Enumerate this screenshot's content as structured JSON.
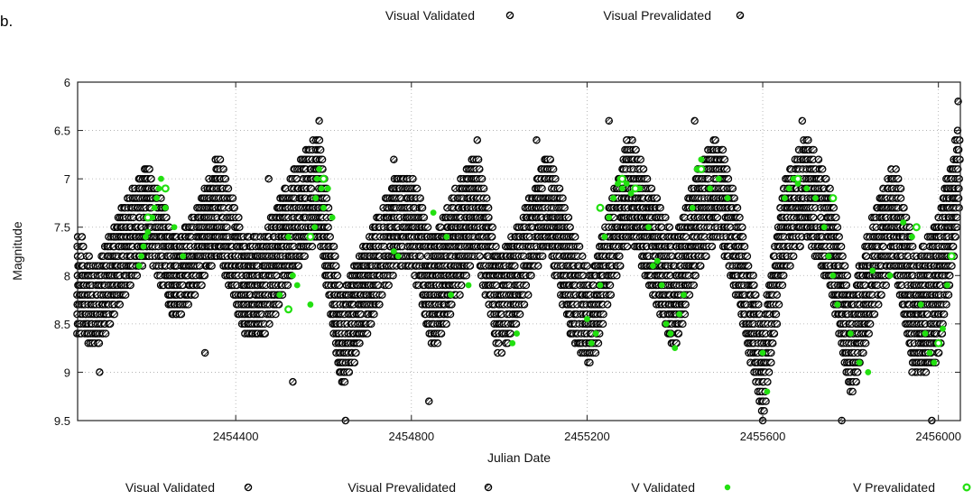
{
  "figure_label": "b.",
  "chart_data": {
    "type": "scatter",
    "xlabel": "Julian Date",
    "ylabel": "Magnitude",
    "xlim": [
      2454040,
      2456050
    ],
    "ylim": [
      6,
      9.5
    ],
    "y_inverted": true,
    "grid": true,
    "x_ticks": [
      2454400,
      2454800,
      2455200,
      2455600,
      2456000
    ],
    "y_ticks": [
      6,
      6.5,
      7,
      7.5,
      8,
      8.5,
      9,
      9.5
    ],
    "legend_top": [
      "Visual Validated",
      "Visual Prevalidated"
    ],
    "legend_bottom": [
      "Visual Validated",
      "Visual Prevalidated",
      "V Validated",
      "V Prevalidated"
    ],
    "series": [
      {
        "name": "Visual Validated",
        "color": "#000000",
        "marker": "open-circle-hatched",
        "envelope": {
          "x": [
            2454040,
            2454080,
            2454140,
            2454200,
            2454260,
            2454310,
            2454360,
            2454420,
            2454470,
            2454530,
            2454590,
            2454640,
            2454700,
            2454760,
            2454800,
            2454850,
            2454900,
            2454950,
            2455000,
            2455050,
            2455110,
            2455160,
            2455210,
            2455260,
            2455300,
            2455350,
            2455400,
            2455450,
            2455500,
            2455550,
            2455600,
            2455650,
            2455700,
            2455750,
            2455800,
            2455850,
            2455900,
            2455950,
            2456000,
            2456050
          ],
          "bright": [
            7.6,
            7.9,
            7.3,
            6.8,
            7.6,
            7.3,
            6.7,
            7.6,
            7.5,
            6.9,
            6.5,
            8.2,
            7.6,
            7.0,
            6.9,
            7.6,
            7.1,
            6.7,
            7.8,
            7.4,
            6.7,
            7.4,
            8.0,
            7.1,
            6.5,
            7.1,
            7.6,
            6.9,
            6.5,
            7.4,
            8.5,
            7.0,
            6.5,
            7.0,
            8.2,
            7.4,
            6.8,
            7.8,
            7.4,
            6.3
          ],
          "faint": [
            8.6,
            8.8,
            8.3,
            7.8,
            8.5,
            8.2,
            7.8,
            8.6,
            8.6,
            8.0,
            7.6,
            9.2,
            8.6,
            8.0,
            7.9,
            8.8,
            8.3,
            7.8,
            8.9,
            8.4,
            7.7,
            8.6,
            9.0,
            8.1,
            7.6,
            8.2,
            8.8,
            8.0,
            7.6,
            8.4,
            9.5,
            8.0,
            7.6,
            8.1,
            9.3,
            8.5,
            7.9,
            9.1,
            8.9,
            7.4
          ]
        }
      },
      {
        "name": "Visual Prevalidated",
        "color": "#000000",
        "marker": "open-circle-hatched",
        "points": [
          [
            2454050,
            7.6
          ],
          [
            2454090,
            9.0
          ],
          [
            2454330,
            8.8
          ],
          [
            2454475,
            7.0
          ],
          [
            2454530,
            9.1
          ],
          [
            2454590,
            6.4
          ],
          [
            2454650,
            9.5
          ],
          [
            2454760,
            6.8
          ],
          [
            2454840,
            9.3
          ],
          [
            2454950,
            6.6
          ],
          [
            2455085,
            6.6
          ],
          [
            2455250,
            6.4
          ],
          [
            2455290,
            6.6
          ],
          [
            2455445,
            6.4
          ],
          [
            2455600,
            9.5
          ],
          [
            2455690,
            6.4
          ],
          [
            2455780,
            9.5
          ],
          [
            2455940,
            9.0
          ],
          [
            2455985,
            9.5
          ],
          [
            2456045,
            6.2
          ]
        ]
      },
      {
        "name": "V Validated",
        "color": "#22e010",
        "marker": "filled-circle",
        "points": [
          [
            2454180,
            7.9
          ],
          [
            2454185,
            7.8
          ],
          [
            2454190,
            7.7
          ],
          [
            2454195,
            7.6
          ],
          [
            2454200,
            7.55
          ],
          [
            2454210,
            7.4
          ],
          [
            2454215,
            7.3
          ],
          [
            2454220,
            7.2
          ],
          [
            2454225,
            7.1
          ],
          [
            2454230,
            7.0
          ],
          [
            2454240,
            7.3
          ],
          [
            2454260,
            7.5
          ],
          [
            2454280,
            7.8
          ],
          [
            2454500,
            8.2
          ],
          [
            2454520,
            7.6
          ],
          [
            2454530,
            8.0
          ],
          [
            2454540,
            8.1
          ],
          [
            2454570,
            8.3
          ],
          [
            2454580,
            7.5
          ],
          [
            2454582,
            7.2
          ],
          [
            2454585,
            7.0
          ],
          [
            2454590,
            6.9
          ],
          [
            2454595,
            7.1
          ],
          [
            2454600,
            7.3
          ],
          [
            2454610,
            7.1
          ],
          [
            2454620,
            7.4
          ],
          [
            2454760,
            7.75
          ],
          [
            2454770,
            7.8
          ],
          [
            2454850,
            7.35
          ],
          [
            2454880,
            7.6
          ],
          [
            2454890,
            8.2
          ],
          [
            2454930,
            8.1
          ],
          [
            2455030,
            8.7
          ],
          [
            2455040,
            8.6
          ],
          [
            2455200,
            8.45
          ],
          [
            2455210,
            8.7
          ],
          [
            2455220,
            8.6
          ],
          [
            2455230,
            8.1
          ],
          [
            2455240,
            7.6
          ],
          [
            2455250,
            7.4
          ],
          [
            2455260,
            7.2
          ],
          [
            2455270,
            7.05
          ],
          [
            2455275,
            7.0
          ],
          [
            2455280,
            7.1
          ],
          [
            2455290,
            7.05
          ],
          [
            2455300,
            7.15
          ],
          [
            2455320,
            7.1
          ],
          [
            2455340,
            7.5
          ],
          [
            2455350,
            7.9
          ],
          [
            2455360,
            7.85
          ],
          [
            2455370,
            8.1
          ],
          [
            2455380,
            8.5
          ],
          [
            2455390,
            8.6
          ],
          [
            2455400,
            8.75
          ],
          [
            2455410,
            8.4
          ],
          [
            2455420,
            8.2
          ],
          [
            2455440,
            7.3
          ],
          [
            2455450,
            6.9
          ],
          [
            2455460,
            6.8
          ],
          [
            2455480,
            7.1
          ],
          [
            2455500,
            7.0
          ],
          [
            2455520,
            7.2
          ],
          [
            2455600,
            8.8
          ],
          [
            2455610,
            9.2
          ],
          [
            2455650,
            7.2
          ],
          [
            2455660,
            7.1
          ],
          [
            2455670,
            7.0
          ],
          [
            2455680,
            7.05
          ],
          [
            2455700,
            7.1
          ],
          [
            2455720,
            7.2
          ],
          [
            2455740,
            7.5
          ],
          [
            2455750,
            7.8
          ],
          [
            2455760,
            8.0
          ],
          [
            2455770,
            8.3
          ],
          [
            2455800,
            8.6
          ],
          [
            2455820,
            8.9
          ],
          [
            2455840,
            9.0
          ],
          [
            2455850,
            7.95
          ],
          [
            2455890,
            8.0
          ],
          [
            2455920,
            7.45
          ],
          [
            2455940,
            7.6
          ],
          [
            2455960,
            8.3
          ],
          [
            2455970,
            8.6
          ],
          [
            2455980,
            8.8
          ],
          [
            2455990,
            8.9
          ],
          [
            2456000,
            8.7
          ],
          [
            2456010,
            8.55
          ],
          [
            2456020,
            8.1
          ]
        ]
      },
      {
        "name": "V Prevalidated",
        "color": "#22e010",
        "marker": "open-circle",
        "points": [
          [
            2454200,
            7.4
          ],
          [
            2454240,
            7.1
          ],
          [
            2454520,
            8.35
          ],
          [
            2454570,
            7.6
          ],
          [
            2454600,
            7.0
          ],
          [
            2455230,
            7.3
          ],
          [
            2455280,
            7.0
          ],
          [
            2455310,
            7.1
          ],
          [
            2455460,
            6.9
          ],
          [
            2455680,
            7.0
          ],
          [
            2455760,
            7.2
          ],
          [
            2455950,
            7.5
          ],
          [
            2456000,
            8.7
          ],
          [
            2456030,
            7.8
          ]
        ]
      }
    ]
  }
}
